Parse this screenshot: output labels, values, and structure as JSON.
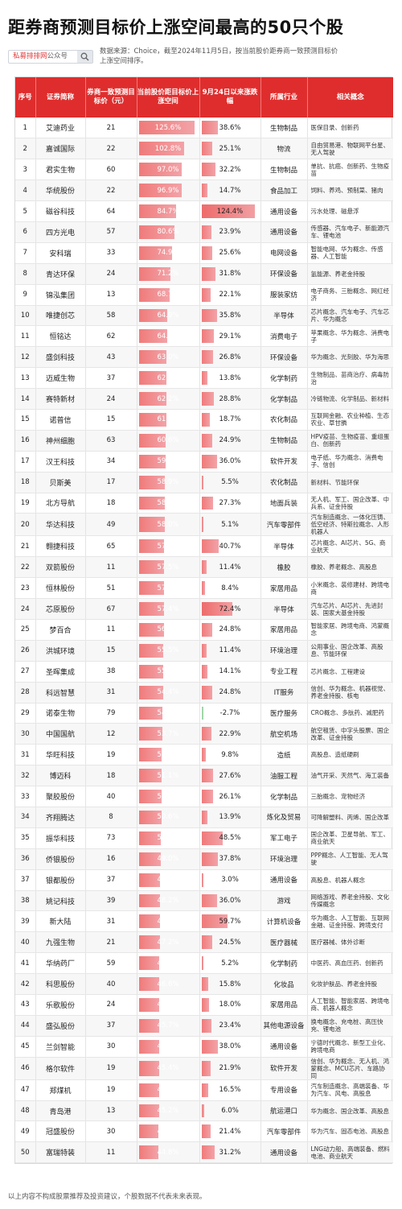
{
  "title": "距券商预测目标价上涨空间最高的50只个股",
  "source_badge": {
    "brand": "私募排排网",
    "suffix": "公众号"
  },
  "source_note": "数据来源：Choice，截至2024年11月5日，按当前股价距券商一致预测目标价上涨空间排序。",
  "headers": {
    "rank": "序号",
    "name": "证券简称",
    "target": "券商一致预测目标价（元）",
    "upside": "当前股价距目标价上涨空间",
    "change": "9月24日以来涨跌幅",
    "industry": "所属行业",
    "concepts": "相关概念"
  },
  "rows": [
    {
      "rank": "1",
      "name": "艾迪药业",
      "target": "21",
      "upside": "125.6%",
      "change": "38.6%",
      "industry": "生物制品",
      "concepts": "医保目录、创新药"
    },
    {
      "rank": "2",
      "name": "嘉诚国际",
      "target": "22",
      "upside": "102.8%",
      "change": "25.1%",
      "industry": "物流",
      "concepts": "自由贸易港、物联网平台星、无人驾驶"
    },
    {
      "rank": "3",
      "name": "君实生物",
      "target": "60",
      "upside": "97.0%",
      "change": "32.2%",
      "industry": "生物制品",
      "concepts": "单抗、抗癌、创新药、生物疫苗"
    },
    {
      "rank": "4",
      "name": "华统股份",
      "target": "22",
      "upside": "96.9%",
      "change": "14.7%",
      "industry": "食品加工",
      "concepts": "饲料、养鸡、预制菜、猪肉"
    },
    {
      "rank": "5",
      "name": "磁谷科技",
      "target": "64",
      "upside": "84.7%",
      "change": "124.4%",
      "industry": "通用设备",
      "concepts": "污水处理、磁悬浮"
    },
    {
      "rank": "6",
      "name": "四方光电",
      "target": "57",
      "upside": "80.6%",
      "change": "23.9%",
      "industry": "通用设备",
      "concepts": "传感器、汽车电子、新能源汽车、锂电池"
    },
    {
      "rank": "7",
      "name": "安科瑞",
      "target": "33",
      "upside": "74.9%",
      "change": "25.6%",
      "industry": "电网设备",
      "concepts": "智能电网、华为概念、传感器、人工智能"
    },
    {
      "rank": "8",
      "name": "青达环保",
      "target": "24",
      "upside": "71.2%",
      "change": "31.8%",
      "industry": "环保设备",
      "concepts": "氢能源、养老金持股"
    },
    {
      "rank": "9",
      "name": "锦泓集团",
      "target": "13",
      "upside": "68.7%",
      "change": "22.1%",
      "industry": "服装家纺",
      "concepts": "电子商务、三胎概念、网红经济"
    },
    {
      "rank": "10",
      "name": "唯捷创芯",
      "target": "58",
      "upside": "64.9%",
      "change": "35.8%",
      "industry": "半导体",
      "concepts": "芯片概念、汽车电子、汽车芯片、华为概念"
    },
    {
      "rank": "11",
      "name": "恒铭达",
      "target": "62",
      "upside": "64.1%",
      "change": "29.1%",
      "industry": "消费电子",
      "concepts": "苹果概念、华为概念、消费电子"
    },
    {
      "rank": "12",
      "name": "盛剑科技",
      "target": "43",
      "upside": "63.0%",
      "change": "26.8%",
      "industry": "环保设备",
      "concepts": "华为概念、光刻胶、华为海思"
    },
    {
      "rank": "13",
      "name": "迈威生物",
      "target": "37",
      "upside": "62.7%",
      "change": "13.8%",
      "industry": "化学制药",
      "concepts": "生物制品、苗商治疗、病毒防治"
    },
    {
      "rank": "14",
      "name": "赛特新材",
      "target": "24",
      "upside": "62.2%",
      "change": "28.8%",
      "industry": "化学制品",
      "concepts": "冷链物流、化学制品、新材料"
    },
    {
      "rank": "15",
      "name": "诺普信",
      "target": "15",
      "upside": "61.8%",
      "change": "18.7%",
      "industry": "农化制品",
      "concepts": "互联网金融、农业种植、生态农业、草甘膦"
    },
    {
      "rank": "16",
      "name": "神州细胞",
      "target": "63",
      "upside": "60.6%",
      "change": "24.9%",
      "industry": "生物制品",
      "concepts": "HPV疫苗、生物疫苗、重组蛋白、创新药"
    },
    {
      "rank": "17",
      "name": "汉王科技",
      "target": "34",
      "upside": "59.7%",
      "change": "36.0%",
      "industry": "软件开发",
      "concepts": "电子纸、华为概念、消费电子、信创"
    },
    {
      "rank": "18",
      "name": "贝斯美",
      "target": "17",
      "upside": "58.9%",
      "change": "5.5%",
      "industry": "农化制品",
      "concepts": "新材料、节能环保"
    },
    {
      "rank": "19",
      "name": "北方导航",
      "target": "18",
      "upside": "58.1%",
      "change": "27.3%",
      "industry": "地面兵装",
      "concepts": "无人机、军工、国企改革、中兵系、证金持股"
    },
    {
      "rank": "20",
      "name": "华达科技",
      "target": "49",
      "upside": "58.0%",
      "change": "5.1%",
      "industry": "汽车零部件",
      "concepts": "汽车制造概念、一体化压铸、低空经济、特斯拉概念、人形机器人"
    },
    {
      "rank": "21",
      "name": "翱捷科技",
      "target": "65",
      "upside": "57.7%",
      "change": "40.7%",
      "industry": "半导体",
      "concepts": "芯片概念、AI芯片、5G、商业航天"
    },
    {
      "rank": "22",
      "name": "双箭股份",
      "target": "11",
      "upside": "57.5%",
      "change": "11.4%",
      "industry": "橡胶",
      "concepts": "橡胶、养老概念、高股息"
    },
    {
      "rank": "23",
      "name": "恒林股份",
      "target": "51",
      "upside": "57.4%",
      "change": "8.4%",
      "industry": "家居用品",
      "concepts": "小米概念、装修建材、跨境电商"
    },
    {
      "rank": "24",
      "name": "芯原股份",
      "target": "67",
      "upside": "57.4%",
      "change": "72.4%",
      "industry": "半导体",
      "concepts": "汽车芯片、AI芯片、先进封装、国家大基金持股"
    },
    {
      "rank": "25",
      "name": "梦百合",
      "target": "11",
      "upside": "56.7%",
      "change": "24.8%",
      "industry": "家居用品",
      "concepts": "智能家居、跨境电商、鸿蒙概念"
    },
    {
      "rank": "26",
      "name": "洪城环境",
      "target": "15",
      "upside": "55.5%",
      "change": "11.4%",
      "industry": "环境治理",
      "concepts": "公用事业、国企改革、高股息、节能环保"
    },
    {
      "rank": "27",
      "name": "圣晖集成",
      "target": "38",
      "upside": "55.2%",
      "change": "14.1%",
      "industry": "专业工程",
      "concepts": "芯片概念、工程建设"
    },
    {
      "rank": "28",
      "name": "科远智慧",
      "target": "31",
      "upside": "54.4%",
      "change": "24.8%",
      "industry": "IT服务",
      "concepts": "信创、华为概念、机器视觉、养老金持股、核电"
    },
    {
      "rank": "29",
      "name": "诺泰生物",
      "target": "79",
      "upside": "54.0%",
      "change": "-2.7%",
      "industry": "医疗服务",
      "concepts": "CRO概念、多肽药、减肥药"
    },
    {
      "rank": "30",
      "name": "中国国航",
      "target": "12",
      "upside": "53.7%",
      "change": "22.9%",
      "industry": "航空机场",
      "concepts": "航空租赁、中字头股票、国企改革、证金持股"
    },
    {
      "rank": "31",
      "name": "华旺科技",
      "target": "19",
      "upside": "51.7%",
      "change": "9.8%",
      "industry": "造纸",
      "concepts": "高股息、造纸硬刷"
    },
    {
      "rank": "32",
      "name": "博迈科",
      "target": "18",
      "upside": "51.1%",
      "change": "27.6%",
      "industry": "油服工程",
      "concepts": "油气开采、天然气、海工装备"
    },
    {
      "rank": "33",
      "name": "聚胶股份",
      "target": "40",
      "upside": "50.9%",
      "change": "26.1%",
      "industry": "化学制品",
      "concepts": "三胎概念、宠物经济"
    },
    {
      "rank": "34",
      "name": "齐翔腾达",
      "target": "8",
      "upside": "50.6%",
      "change": "13.9%",
      "industry": "炼化及贸易",
      "concepts": "可降解塑料、丙烯、国企改革"
    },
    {
      "rank": "35",
      "name": "振华科技",
      "target": "73",
      "upside": "50.5%",
      "change": "48.5%",
      "industry": "军工电子",
      "concepts": "国企改革、卫星导航、军工、商业航天"
    },
    {
      "rank": "36",
      "name": "侨银股份",
      "target": "16",
      "upside": "49.0%",
      "change": "37.8%",
      "industry": "环境治理",
      "concepts": "PPP概念、人工智能、无人驾驶"
    },
    {
      "rank": "37",
      "name": "银都股份",
      "target": "37",
      "upside": "48.6%",
      "change": "3.0%",
      "industry": "通用设备",
      "concepts": "高股息、机器人概念"
    },
    {
      "rank": "38",
      "name": "姚记科技",
      "target": "39",
      "upside": "48.2%",
      "change": "36.0%",
      "industry": "游戏",
      "concepts": "网络游戏、养老金持股、文化传媒概念"
    },
    {
      "rank": "39",
      "name": "新大陆",
      "target": "31",
      "upside": "47.9%",
      "change": "59.7%",
      "industry": "计算机设备",
      "concepts": "华为概念、人工智能、互联网金融、证金持股、跨境支付"
    },
    {
      "rank": "40",
      "name": "九强生物",
      "target": "21",
      "upside": "47.2%",
      "change": "24.5%",
      "industry": "医疗器械",
      "concepts": "医疗器械、体外诊断"
    },
    {
      "rank": "41",
      "name": "华纳药厂",
      "target": "59",
      "upside": "46.7%",
      "change": "5.2%",
      "industry": "化学制药",
      "concepts": "中医药、高血压药、创新药"
    },
    {
      "rank": "42",
      "name": "科思股份",
      "target": "40",
      "upside": "46.6%",
      "change": "15.8%",
      "industry": "化妆品",
      "concepts": "化妆护肤品、养老金持股"
    },
    {
      "rank": "43",
      "name": "乐歌股份",
      "target": "24",
      "upside": "46.1%",
      "change": "18.0%",
      "industry": "家居用品",
      "concepts": "人工智能、智能家居、跨境电商、机器人概念"
    },
    {
      "rank": "44",
      "name": "盛弘股份",
      "target": "37",
      "upside": "45.7%",
      "change": "23.4%",
      "industry": "其他电源设备",
      "concepts": "换电概念、充电桩、高压快充、锂电池"
    },
    {
      "rank": "45",
      "name": "兰剑智能",
      "target": "30",
      "upside": "45.5%",
      "change": "38.0%",
      "industry": "通用设备",
      "concepts": "宁德时代概念、新型工业化、跨境电商"
    },
    {
      "rank": "46",
      "name": "格尔软件",
      "target": "19",
      "upside": "45.4%",
      "change": "21.9%",
      "industry": "软件开发",
      "concepts": "信创、华为概念、无人机、鸿蒙概念、MCU芯片、车路协同"
    },
    {
      "rank": "47",
      "name": "郑煤机",
      "target": "19",
      "upside": "45.2%",
      "change": "16.5%",
      "industry": "专用设备",
      "concepts": "汽车制造概念、高端装备、华为汽车、风电、高股息"
    },
    {
      "rank": "48",
      "name": "青岛港",
      "target": "13",
      "upside": "45.2%",
      "change": "6.0%",
      "industry": "航运港口",
      "concepts": "华为概念、国企改革、高股息"
    },
    {
      "rank": "49",
      "name": "冠盛股份",
      "target": "30",
      "upside": "45.1%",
      "change": "21.4%",
      "industry": "汽车零部件",
      "concepts": "华为汽车、固态电池、高股息"
    },
    {
      "rank": "50",
      "name": "富瑞特装",
      "target": "11",
      "upside": "44.8%",
      "change": "31.2%",
      "industry": "通用设备",
      "concepts": "LNG动力船、高端装备、燃料电池、商业航天"
    }
  ],
  "footer": "以上内容不构成股票推荐及投资建议，个股数据不代表未来表现。"
}
